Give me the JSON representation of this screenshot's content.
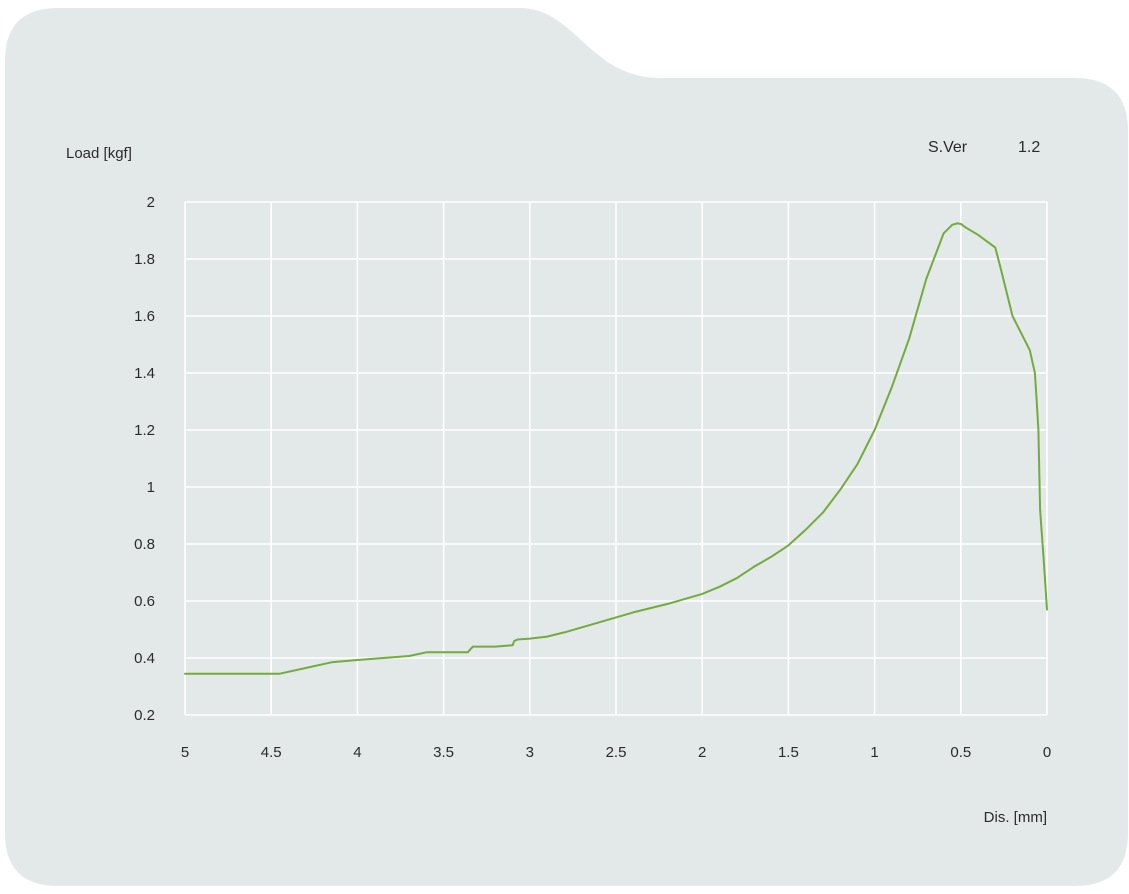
{
  "colors": {
    "panel": "#e3e8e9",
    "grid": "#ffffff",
    "series": "#73ab3e",
    "text": "#2b2b2b"
  },
  "version": {
    "label": "S.Ver",
    "value": "1.2"
  },
  "chart_data": {
    "type": "line",
    "ylabel": "Load [kgf]",
    "xlabel": "Dis.  [mm]",
    "xlim": [
      5,
      0
    ],
    "ylim": [
      0.2,
      2
    ],
    "x_reversed": true,
    "grid": true,
    "x_ticks": [
      5,
      4.5,
      4,
      3.5,
      3,
      2.5,
      2,
      1.5,
      1,
      0.5,
      0
    ],
    "y_ticks": [
      0.2,
      0.4,
      0.6,
      0.8,
      1,
      1.2,
      1.4,
      1.6,
      1.8,
      2
    ],
    "x_tick_labels": [
      "5",
      "4.5",
      "4",
      "3.5",
      "3",
      "2.5",
      "2",
      "1.5",
      "1",
      "0.5",
      "0"
    ],
    "y_tick_labels": [
      "0.2",
      "0.4",
      "0.6",
      "0.8",
      "1",
      "1.2",
      "1.4",
      "1.6",
      "1.8",
      "2"
    ],
    "series": [
      {
        "x": [
          5,
          4.8,
          4.6,
          4.45,
          4.3,
          4.15,
          4.0,
          3.85,
          3.7,
          3.6,
          3.5,
          3.36,
          3.33,
          3.3,
          3.2,
          3.1,
          3.09,
          3.07,
          3.0,
          2.9,
          2.8,
          2.6,
          2.4,
          2.2,
          2.0,
          1.9,
          1.8,
          1.7,
          1.6,
          1.5,
          1.4,
          1.3,
          1.2,
          1.1,
          1.0,
          0.9,
          0.8,
          0.7,
          0.6,
          0.55,
          0.52,
          0.5,
          0.47,
          0.4,
          0.3,
          0.27,
          0.2,
          0.1,
          0.07,
          0.06,
          0.05,
          0.04,
          0.02,
          0.0
        ],
        "y": [
          0.345,
          0.345,
          0.345,
          0.345,
          0.365,
          0.385,
          0.393,
          0.4,
          0.407,
          0.42,
          0.42,
          0.42,
          0.44,
          0.44,
          0.44,
          0.445,
          0.46,
          0.465,
          0.468,
          0.475,
          0.49,
          0.525,
          0.56,
          0.59,
          0.625,
          0.65,
          0.68,
          0.72,
          0.755,
          0.795,
          0.85,
          0.91,
          0.99,
          1.08,
          1.2,
          1.35,
          1.52,
          1.73,
          1.89,
          1.92,
          1.925,
          1.923,
          1.91,
          1.885,
          1.84,
          1.77,
          1.6,
          1.48,
          1.4,
          1.3,
          1.2,
          0.92,
          0.75,
          0.57
        ]
      }
    ]
  }
}
